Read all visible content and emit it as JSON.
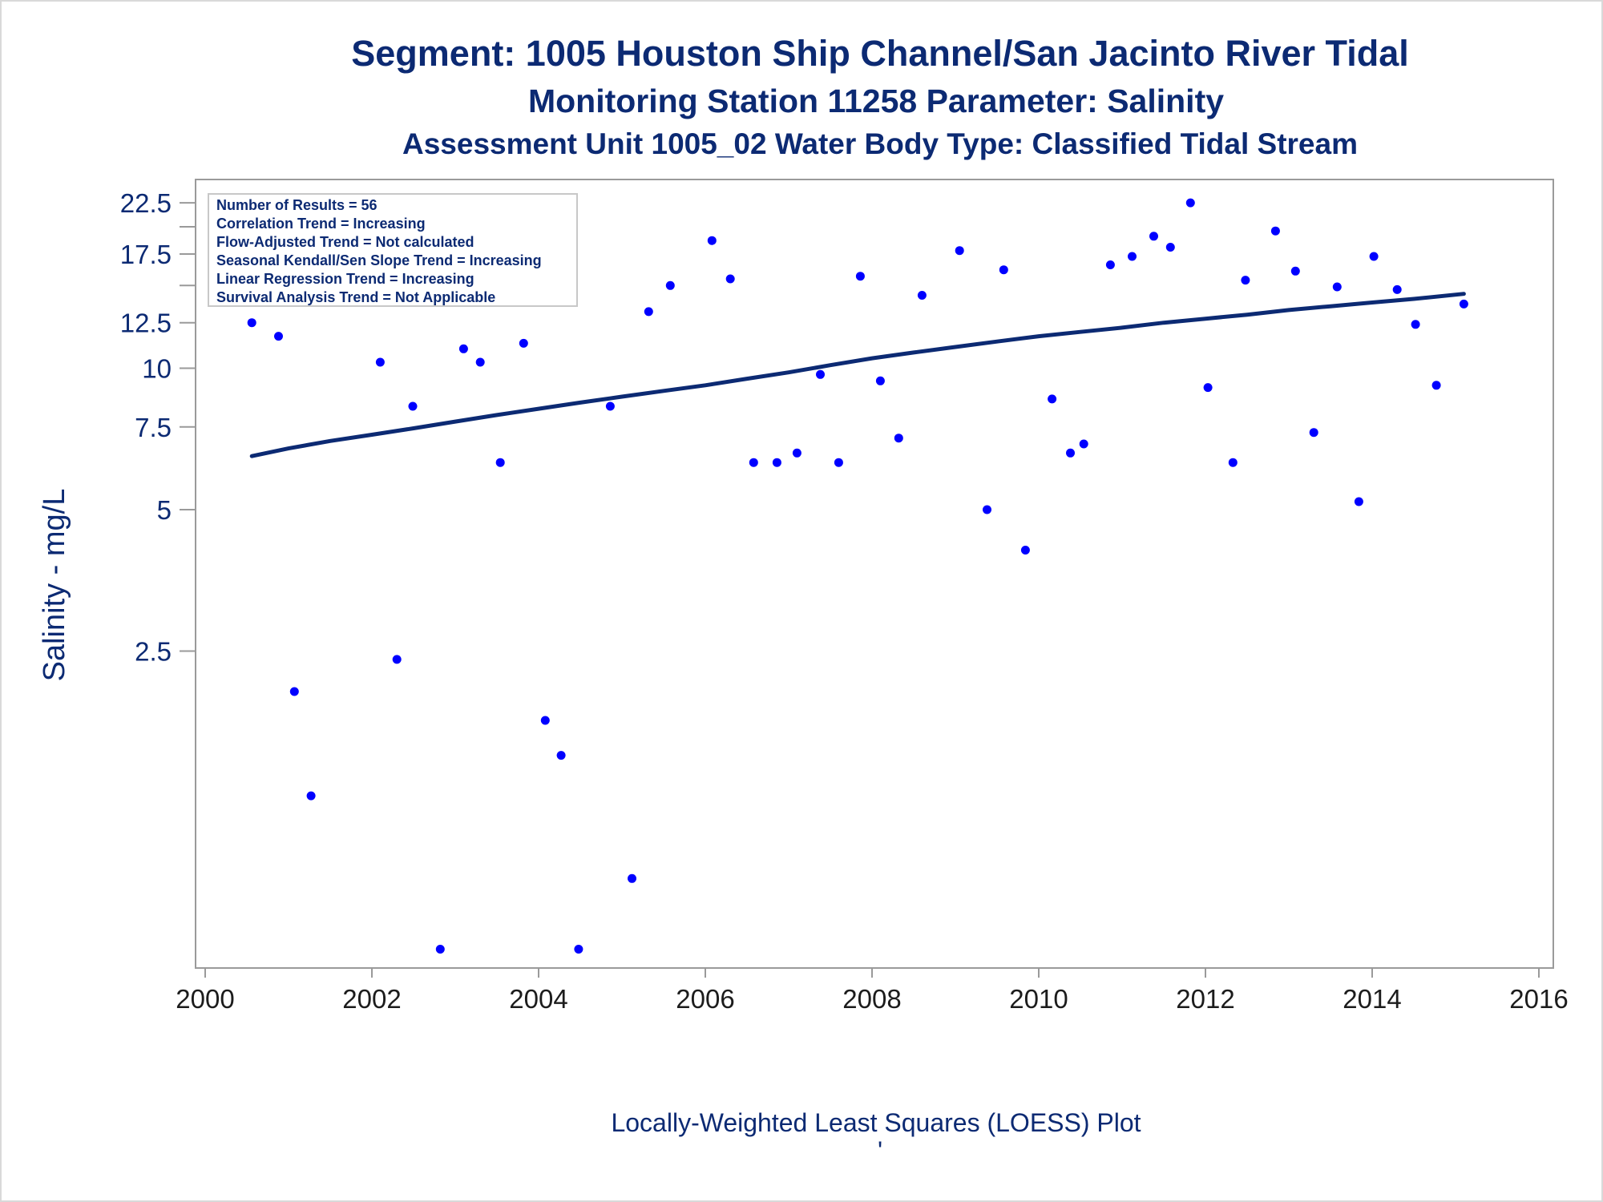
{
  "chart_data": {
    "type": "scatter",
    "title": "Segment: 1005  Houston Ship Channel/San Jacinto River Tidal",
    "subtitle": "Monitoring Station 11258 Parameter: Salinity",
    "subtitle2": "Assessment Unit 1005_02   Water Body Type: Classified Tidal Stream",
    "xlabel": "",
    "ylabel": "Salinity - mg/L",
    "footnote": "Locally-Weighted Least Squares (LOESS) Plot",
    "footnote_mark": "'",
    "y_scale": "log",
    "xlim": [
      2000,
      2016
    ],
    "ylim": [
      0.55,
      23.5
    ],
    "x_ticks": [
      "2000",
      "2002",
      "2004",
      "2006",
      "2008",
      "2010",
      "2012",
      "2014",
      "2016"
    ],
    "y_ticks": [
      {
        "value": 22.5,
        "label": "22.5"
      },
      {
        "value": 17.5,
        "label": "17.5"
      },
      {
        "value": 12.5,
        "label": "12.5"
      },
      {
        "value": 10,
        "label": "10"
      },
      {
        "value": 7.5,
        "label": "7.5"
      },
      {
        "value": 5,
        "label": "5"
      },
      {
        "value": 2.5,
        "label": "2.5"
      }
    ],
    "y_minor_ticks": [
      20,
      15
    ],
    "inset_box": [
      "Number of Results = 56",
      "Correlation Trend = Increasing",
      "Flow-Adjusted Trend = Not calculated",
      "Seasonal Kendall/Sen Slope Trend = Increasing",
      "Linear Regression Trend = Increasing",
      "Survival Analysis Trend = Not Applicable"
    ],
    "grid": false,
    "legend": "none",
    "point_color": "#0000ff",
    "line_color": "#0c2a73",
    "series": [
      {
        "kind": "points",
        "x": [
          2000.56,
          2000.88,
          2001.07,
          2001.27,
          2001.56,
          2002.1,
          2002.3,
          2002.49,
          2002.82,
          2003.1,
          2003.3,
          2003.54,
          2003.82,
          2004.08,
          2004.27,
          2004.48,
          2004.86,
          2005.12,
          2005.32,
          2005.58,
          2006.08,
          2006.3,
          2006.58,
          2006.86,
          2007.1,
          2007.38,
          2007.6,
          2007.86,
          2008.1,
          2008.32,
          2008.6,
          2009.05,
          2009.38,
          2009.58,
          2009.84,
          2010.16,
          2010.38,
          2010.54,
          2010.86,
          2011.12,
          2011.38,
          2011.58,
          2011.82,
          2012.03,
          2012.33,
          2012.48,
          2012.84,
          2013.08,
          2013.3,
          2013.58,
          2013.84,
          2014.02,
          2014.3,
          2014.52,
          2014.77,
          2015.1
        ],
        "y": [
          12.5,
          11.7,
          2.05,
          1.23,
          16.5,
          10.3,
          2.4,
          8.3,
          0.58,
          11.0,
          10.3,
          6.3,
          11.3,
          1.78,
          1.5,
          0.58,
          8.3,
          0.82,
          13.2,
          15.0,
          18.7,
          15.5,
          6.3,
          6.3,
          6.6,
          9.7,
          6.3,
          15.7,
          9.4,
          7.1,
          14.3,
          17.8,
          5.0,
          16.2,
          4.1,
          8.6,
          6.6,
          6.9,
          16.6,
          17.3,
          19.1,
          18.1,
          22.5,
          9.1,
          6.3,
          15.4,
          19.6,
          16.1,
          7.3,
          14.9,
          5.2,
          17.3,
          14.7,
          12.4,
          9.2,
          13.7
        ]
      },
      {
        "kind": "line",
        "x": [
          2000.56,
          2001.0,
          2001.5,
          2002.0,
          2002.5,
          2003.0,
          2003.5,
          2004.0,
          2004.5,
          2005.0,
          2005.5,
          2006.0,
          2006.5,
          2007.0,
          2007.5,
          2008.0,
          2008.5,
          2009.0,
          2009.5,
          2010.0,
          2010.5,
          2011.0,
          2011.5,
          2012.0,
          2012.5,
          2013.0,
          2013.5,
          2014.0,
          2014.5,
          2015.1
        ],
        "y": [
          6.5,
          6.75,
          7.0,
          7.22,
          7.45,
          7.7,
          7.95,
          8.2,
          8.45,
          8.7,
          8.95,
          9.2,
          9.5,
          9.8,
          10.15,
          10.5,
          10.8,
          11.1,
          11.4,
          11.7,
          11.95,
          12.2,
          12.5,
          12.75,
          13.0,
          13.3,
          13.55,
          13.8,
          14.05,
          14.4
        ]
      }
    ]
  }
}
